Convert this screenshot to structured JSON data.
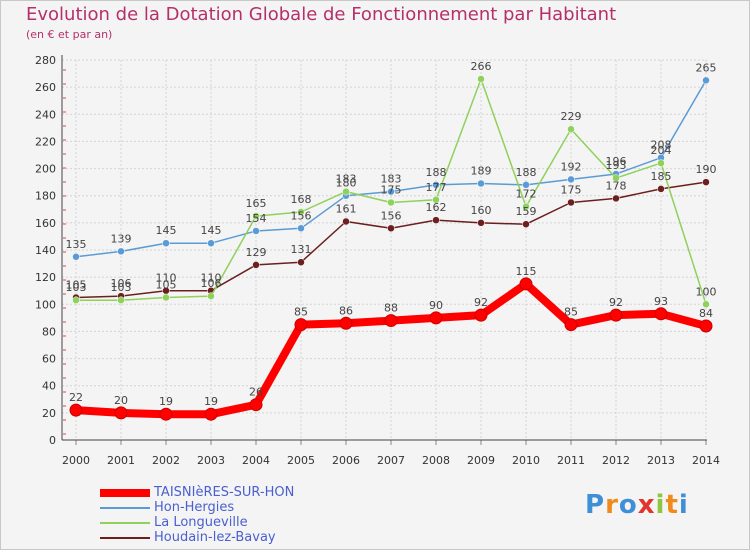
{
  "chart_data": {
    "type": "line",
    "title": "Evolution de la Dotation Globale de Fonctionnement par Habitant",
    "subtitle": "(en € et par an)",
    "xlabel": "",
    "ylabel": "",
    "ylim": [
      0,
      280
    ],
    "yticks": [
      "0",
      "20",
      "40",
      "60",
      "80",
      "100",
      "120",
      "140",
      "160",
      "180",
      "200",
      "220",
      "240",
      "260",
      "280"
    ],
    "x": [
      "2000",
      "2001",
      "2002",
      "2003",
      "2004",
      "2005",
      "2006",
      "2007",
      "2008",
      "2009",
      "2010",
      "2011",
      "2012",
      "2013",
      "2014"
    ],
    "grid": true,
    "legend_position": "bottom-left",
    "series": [
      {
        "name": "TAISNIèRES-SUR-HON",
        "color": "#ff0000",
        "values": [
          22,
          20,
          19,
          19,
          26,
          85,
          86,
          88,
          90,
          92,
          115,
          85,
          92,
          93,
          84
        ],
        "labels": [
          "22",
          "20",
          "19",
          "19",
          "26",
          "85",
          "86",
          "88",
          "90",
          "92",
          "115",
          "85",
          "92",
          "93",
          "84"
        ]
      },
      {
        "name": "Hon-Hergies",
        "color": "#5b9bd5",
        "values": [
          135,
          139,
          145,
          145,
          154,
          156,
          180,
          183,
          188,
          189,
          188,
          192,
          196,
          208,
          265
        ],
        "labels": [
          "135",
          "139",
          "145",
          "145",
          "154",
          "156",
          "180",
          "183",
          "188",
          "189",
          "188",
          "192",
          "196",
          "208",
          "265"
        ]
      },
      {
        "name": "La Longueville",
        "color": "#8ed15b",
        "values": [
          103,
          103,
          105,
          106,
          165,
          168,
          183,
          175,
          177,
          266,
          172,
          229,
          193,
          204,
          100
        ],
        "labels": [
          "103",
          "103",
          "105",
          "106",
          "165",
          "168",
          "183",
          "175",
          "177",
          "266",
          "172",
          "229",
          "193",
          "204",
          "100"
        ]
      },
      {
        "name": "Houdain-lez-Bavay",
        "color": "#6b1f1f",
        "values": [
          105,
          106,
          110,
          110,
          129,
          131,
          161,
          156,
          162,
          160,
          159,
          175,
          178,
          185,
          190
        ],
        "labels": [
          "105",
          "106",
          "110",
          "110",
          "129",
          "131",
          "161",
          "156",
          "162",
          "160",
          "159",
          "175",
          "178",
          "185",
          "190"
        ]
      }
    ]
  },
  "legend": {
    "items": [
      {
        "label": "TAISNIèRES-SUR-HON"
      },
      {
        "label": "Hon-Hergies"
      },
      {
        "label": "La Longueville"
      },
      {
        "label": "Houdain-lez-Bavay"
      }
    ]
  },
  "logo": {
    "letters": [
      "P",
      "r",
      "o",
      "x",
      "i",
      "t",
      "i"
    ],
    "colors": [
      "#3f8fd8",
      "#f08a1c",
      "#3f8fd8",
      "#e2342c",
      "#8dc63f",
      "#f08a1c",
      "#3f8fd8"
    ]
  }
}
